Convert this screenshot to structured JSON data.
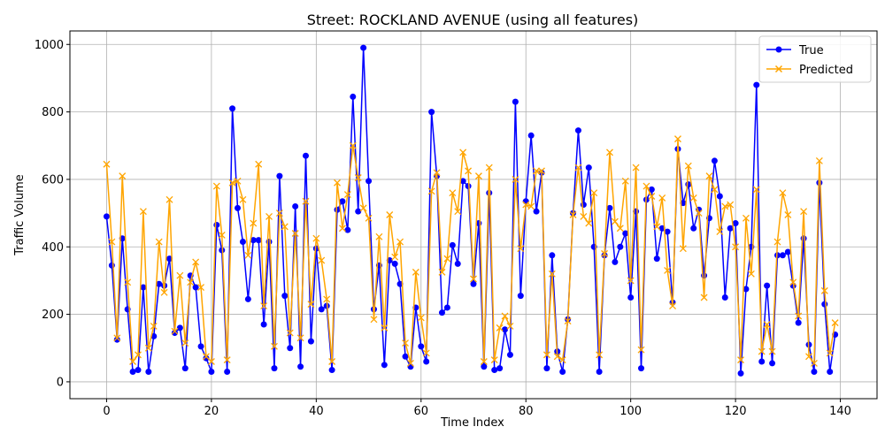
{
  "chart_data": {
    "type": "line",
    "title": "Street: ROCKLAND AVENUE (using all features)",
    "xlabel": "Time Index",
    "ylabel": "Traffic Volume",
    "xlim": [
      -7,
      147
    ],
    "ylim": [
      -50,
      1040
    ],
    "xticks": [
      0,
      20,
      40,
      60,
      80,
      100,
      120,
      140
    ],
    "yticks": [
      0,
      200,
      400,
      600,
      800,
      1000
    ],
    "grid": true,
    "legend_position": "top-right",
    "series": [
      {
        "name": "True",
        "color": "#0000ff",
        "marker": "circle",
        "values": [
          490,
          345,
          125,
          425,
          215,
          30,
          35,
          280,
          30,
          135,
          290,
          285,
          365,
          145,
          160,
          40,
          315,
          280,
          105,
          70,
          30,
          465,
          390,
          30,
          810,
          515,
          415,
          245,
          420,
          420,
          170,
          415,
          40,
          610,
          255,
          100,
          520,
          45,
          670,
          120,
          395,
          215,
          225,
          35,
          510,
          535,
          450,
          845,
          505,
          990,
          595,
          215,
          345,
          50,
          360,
          350,
          290,
          75,
          45,
          220,
          105,
          60,
          800,
          610,
          205,
          220,
          405,
          350,
          595,
          580,
          290,
          470,
          45,
          560,
          35,
          40,
          155,
          80,
          830,
          255,
          535,
          730,
          505,
          620,
          40,
          375,
          90,
          30,
          185,
          500,
          745,
          525,
          635,
          400,
          30,
          375,
          515,
          355,
          400,
          440,
          250,
          505,
          40,
          540,
          570,
          365,
          455,
          445,
          235,
          690,
          530,
          585,
          455,
          510,
          315,
          485,
          655,
          550,
          250,
          455,
          470,
          25,
          275,
          400,
          880,
          60,
          285,
          55,
          375,
          375,
          385,
          285,
          175,
          425,
          110,
          30,
          590,
          230,
          30,
          140
        ]
      },
      {
        "name": "Predicted",
        "color": "#ffa500",
        "marker": "x",
        "values": [
          645,
          415,
          130,
          610,
          295,
          60,
          80,
          505,
          100,
          165,
          415,
          265,
          540,
          150,
          315,
          115,
          295,
          355,
          280,
          75,
          60,
          580,
          435,
          65,
          590,
          595,
          540,
          375,
          470,
          645,
          225,
          490,
          105,
          500,
          460,
          145,
          440,
          130,
          535,
          230,
          425,
          360,
          245,
          60,
          590,
          455,
          555,
          700,
          605,
          515,
          485,
          185,
          430,
          160,
          495,
          370,
          415,
          115,
          55,
          325,
          190,
          85,
          565,
          620,
          325,
          365,
          560,
          505,
          680,
          625,
          305,
          610,
          60,
          635,
          65,
          160,
          195,
          165,
          600,
          395,
          525,
          520,
          625,
          625,
          80,
          320,
          75,
          65,
          180,
          495,
          635,
          490,
          470,
          560,
          80,
          380,
          680,
          475,
          455,
          595,
          300,
          635,
          95,
          580,
          550,
          460,
          545,
          330,
          225,
          720,
          395,
          640,
          545,
          500,
          250,
          610,
          570,
          445,
          520,
          525,
          400,
          65,
          485,
          320,
          570,
          90,
          170,
          90,
          415,
          560,
          495,
          295,
          195,
          505,
          75,
          55,
          655,
          270,
          85,
          175
        ]
      }
    ]
  }
}
